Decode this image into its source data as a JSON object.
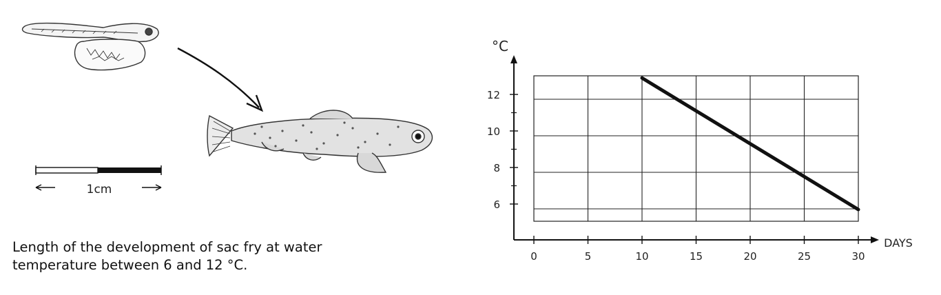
{
  "caption": {
    "line1": "Length of the development of sac fry at water",
    "line2": "temperature between 6 and 12 °C."
  },
  "scale_bar": {
    "label": "1cm"
  },
  "chart_data": {
    "type": "line",
    "xlabel": "DAYS",
    "ylabel": "°C",
    "xlim": [
      0,
      30
    ],
    "ylim": [
      5,
      13
    ],
    "x_ticks": [
      0,
      5,
      10,
      15,
      20,
      25,
      30
    ],
    "y_ticks": [
      6,
      8,
      10,
      12
    ],
    "x_tick_labels": [
      "0",
      "5",
      "10",
      "15",
      "20",
      "25",
      "30"
    ],
    "y_tick_labels": [
      "6",
      "8",
      "10",
      "12"
    ],
    "grid": true,
    "series": [
      {
        "x": [
          10,
          30
        ],
        "y": [
          12.9,
          5.7
        ]
      }
    ]
  }
}
